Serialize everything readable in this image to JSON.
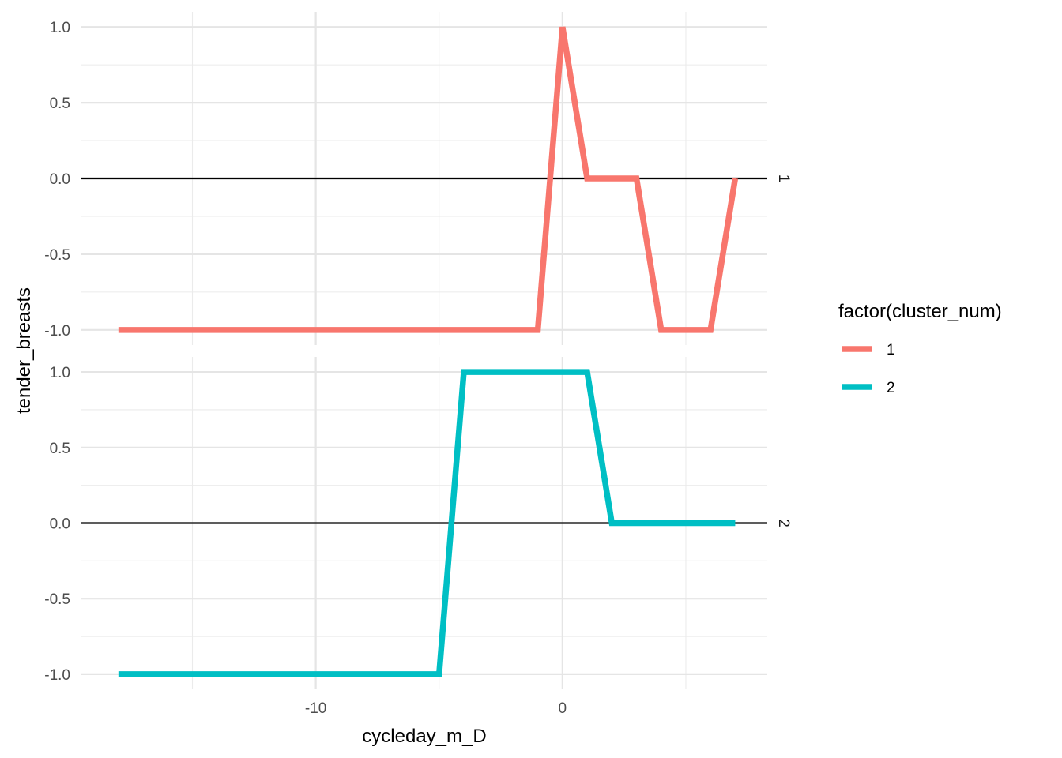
{
  "chart_data": {
    "type": "line",
    "xlabel": "cycleday_m_D",
    "ylabel": "tender_breasts",
    "xlim": [
      -19.5,
      8.3
    ],
    "ylim": [
      -1.1,
      1.1
    ],
    "x_ticks": [
      -10,
      0
    ],
    "x_minor_ticks": [
      -15,
      -5,
      5
    ],
    "y_ticks": [
      -1.0,
      -0.5,
      0.0,
      0.5,
      1.0
    ],
    "y_tick_labels": [
      "-1.0",
      "-0.5",
      "0.0",
      "0.5",
      "1.0"
    ],
    "x_tick_labels": [
      "-10",
      "0"
    ],
    "hline": 0,
    "grid": true,
    "facet_rows": [
      "1",
      "2"
    ],
    "legend": {
      "title": "factor(cluster_num)",
      "position": "right",
      "entries": [
        {
          "label": "1",
          "color": "#F8766D"
        },
        {
          "label": "2",
          "color": "#00BFC4"
        }
      ]
    },
    "series": [
      {
        "name": "1",
        "facet": "1",
        "color": "#F8766D",
        "x": [
          -18,
          -1,
          0,
          1,
          2,
          3,
          4,
          5,
          6,
          7
        ],
        "y": [
          -1,
          -1,
          1,
          0,
          0,
          0,
          -1,
          -1,
          -1,
          0
        ]
      },
      {
        "name": "2",
        "facet": "2",
        "color": "#00BFC4",
        "x": [
          -18,
          -5,
          -4,
          -3,
          -2,
          -1,
          0,
          1,
          2,
          3,
          4,
          5,
          6,
          7
        ],
        "y": [
          -1,
          -1,
          1,
          1,
          1,
          1,
          1,
          1,
          0,
          0,
          0,
          0,
          0,
          0
        ]
      }
    ]
  }
}
